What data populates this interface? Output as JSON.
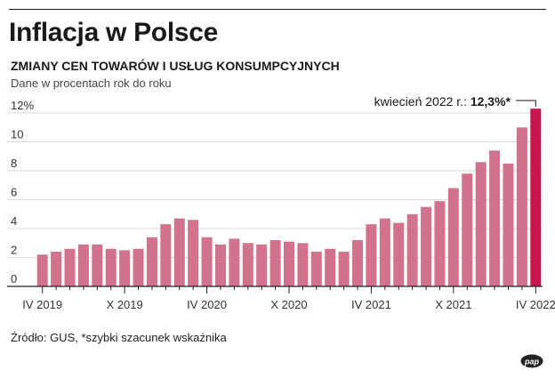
{
  "header": {
    "title": "Inflacja w Polsce",
    "subtitle": "ZMIANY CEN TOWARÓW I USŁUG KONSUMPCYJNYCH",
    "note": "Dane w procentach rok do roku"
  },
  "footer": {
    "source": "Źródło: GUS, *szybki szacunek wskaźnika",
    "logo": "pap"
  },
  "colors": {
    "bar": "#d2738d",
    "highlight": "#c8174f",
    "grid": "#d9d9d9",
    "axis": "#222222"
  },
  "chart_data": {
    "type": "bar",
    "title": "Inflacja w Polsce",
    "ylim": [
      0,
      12
    ],
    "yticks": [
      0,
      2,
      4,
      6,
      8,
      10,
      12
    ],
    "ytick_labels": [
      "0",
      "2",
      "4",
      "6",
      "8",
      "10",
      "12%"
    ],
    "grid": true,
    "categories": [
      "IV 2019",
      "V 2019",
      "VI 2019",
      "VII 2019",
      "VIII 2019",
      "IX 2019",
      "X 2019",
      "XI 2019",
      "XII 2019",
      "I 2020",
      "II 2020",
      "III 2020",
      "IV 2020",
      "V 2020",
      "VI 2020",
      "VII 2020",
      "VIII 2020",
      "IX 2020",
      "X 2020",
      "XI 2020",
      "XII 2020",
      "I 2021",
      "II 2021",
      "III 2021",
      "IV 2021",
      "V 2021",
      "VI 2021",
      "VII 2021",
      "VIII 2021",
      "IX 2021",
      "X 2021",
      "XI 2021",
      "XII 2021",
      "I 2022",
      "II 2022",
      "III 2022",
      "IV 2022"
    ],
    "xtick_labels": [
      "IV 2019",
      "X 2019",
      "IV 2020",
      "X 2020",
      "IV 2021",
      "X 2021",
      "IV 2022"
    ],
    "values": [
      2.2,
      2.4,
      2.6,
      2.9,
      2.9,
      2.6,
      2.5,
      2.6,
      3.4,
      4.3,
      4.7,
      4.6,
      3.4,
      2.9,
      3.3,
      3.0,
      2.9,
      3.2,
      3.1,
      3.0,
      2.4,
      2.6,
      2.4,
      3.2,
      4.3,
      4.7,
      4.4,
      5.0,
      5.5,
      5.9,
      6.8,
      7.8,
      8.6,
      9.4,
      8.5,
      11.0,
      12.3
    ],
    "highlight_index": 36,
    "annotation": {
      "prefix": "kwiecień 2022 r.:",
      "value": "12,3%*"
    }
  }
}
